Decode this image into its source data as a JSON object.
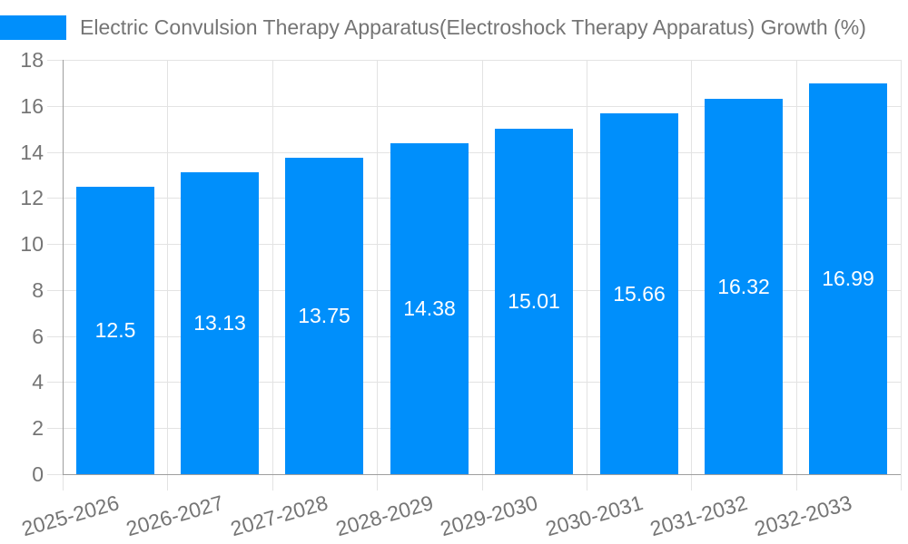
{
  "chart_data": {
    "type": "bar",
    "title": "Electric Convulsion Therapy Apparatus(Electroshock Therapy Apparatus) Growth (%)",
    "categories": [
      "2025-2026",
      "2026-2027",
      "2027-2028",
      "2028-2029",
      "2029-2030",
      "2030-2031",
      "2031-2032",
      "2032-2033"
    ],
    "values": [
      12.5,
      13.13,
      13.75,
      14.38,
      15.01,
      15.66,
      16.32,
      16.99
    ],
    "value_labels": [
      "12.5",
      "13.13",
      "13.75",
      "14.38",
      "15.01",
      "15.66",
      "16.32",
      "16.99"
    ],
    "ylim": [
      0,
      18
    ],
    "yticks": [
      0,
      2,
      4,
      6,
      8,
      10,
      12,
      14,
      16,
      18
    ],
    "grid": true,
    "legend_position": "top-left",
    "colors": {
      "bar": "#008FFB",
      "bar_label": "#FFFFFF",
      "axis_line": "#9E9E9E",
      "gridline": "#E3E3E3",
      "text": "#757575",
      "background": "#FFFFFF"
    }
  }
}
